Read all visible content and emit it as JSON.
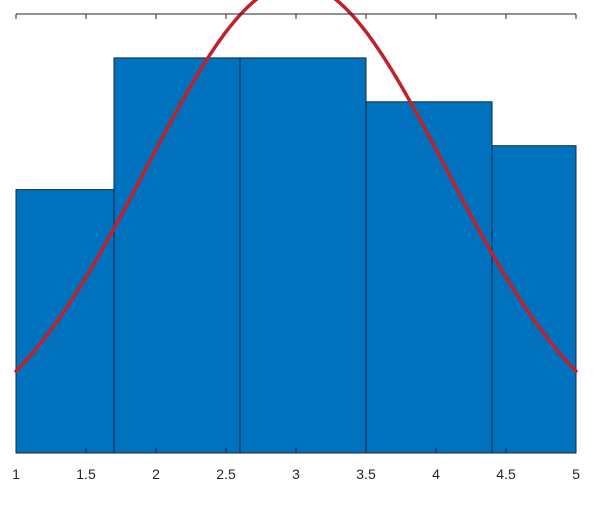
{
  "chart_data": {
    "type": "bar",
    "subtype": "histogram-with-fitted-curve",
    "title": "",
    "xlabel": "",
    "ylabel": "",
    "xlim": [
      1,
      5
    ],
    "ylim": [
      0,
      1.0
    ],
    "x_ticks": [
      1,
      1.5,
      2,
      2.5,
      3,
      3.5,
      4,
      4.5,
      5
    ],
    "x_tick_labels": [
      "1",
      "1.5",
      "2",
      "2.5",
      "3",
      "3.5",
      "4",
      "4.5",
      "5"
    ],
    "y_axis_visible": false,
    "grid": false,
    "bins": [
      {
        "x_start": 1.0,
        "x_end": 1.7,
        "value": 0.6
      },
      {
        "x_start": 1.7,
        "x_end": 2.6,
        "value": 0.9
      },
      {
        "x_start": 2.6,
        "x_end": 3.5,
        "value": 0.9
      },
      {
        "x_start": 3.5,
        "x_end": 4.4,
        "value": 0.8
      },
      {
        "x_start": 4.4,
        "x_end": 5.0,
        "value": 0.7
      }
    ],
    "fit_curve": {
      "type": "normal",
      "mean": 3.0,
      "sigma": 1.07,
      "peak": 1.07,
      "color": "#c0212b"
    },
    "bar_color": "#0072bd",
    "bar_edge_color": "#0a2a4a",
    "axis_color": "#262626"
  }
}
